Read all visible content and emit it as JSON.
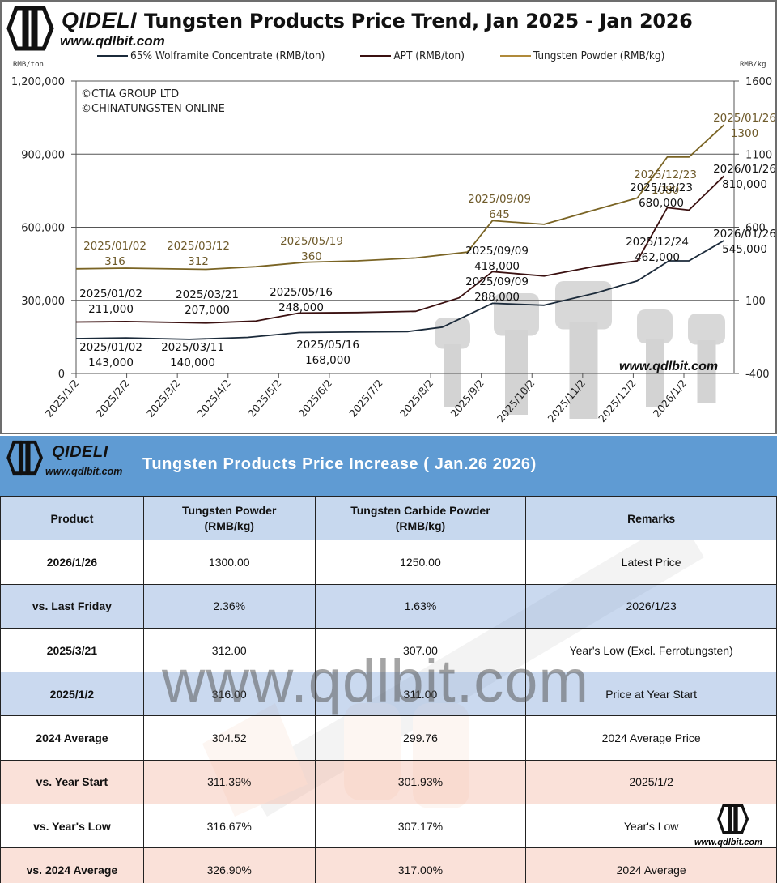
{
  "chart_header": {
    "brand": "QIDELI",
    "url": "www.qdlbit.com",
    "title": "Tungsten Products Price Trend, Jan 2025 - Jan 2026",
    "left_axis_unit": "RMB/ton",
    "right_axis_unit": "RMB/kg",
    "copyright_1": "©CTIA GROUP LTD",
    "copyright_2": "©CHINATUNGSTEN ONLINE",
    "watermark": "www.qdlbit.com"
  },
  "legend": [
    {
      "label": "65% Wolframite Concentrate (RMB/ton)",
      "color": "#1b2a3a"
    },
    {
      "label": "APT (RMB/ton)",
      "color": "#3a1010"
    },
    {
      "label": "Tungsten Powder (RMB/kg)",
      "color": "#7a6424"
    }
  ],
  "chart_data": {
    "type": "line",
    "title": "Tungsten Products Price Trend, Jan 2025 - Jan 2026",
    "xlabel": "",
    "ylabel": "RMB/ton",
    "y2label": "RMB/kg",
    "ylim": [
      0,
      1200000
    ],
    "y2lim": [
      -400,
      1600
    ],
    "yticks": [
      "0",
      "300,000",
      "600,000",
      "900,000",
      "1,200,000"
    ],
    "y2ticks": [
      "-400",
      "100",
      "600",
      "1100",
      "1600"
    ],
    "grid": true,
    "legend_position": "top",
    "x_ticks": [
      "2025/1/2",
      "2025/2/2",
      "2025/3/2",
      "2025/4/2",
      "2025/5/2",
      "2025/6/2",
      "2025/7/2",
      "2025/8/2",
      "2025/9/2",
      "2025/10/2",
      "2025/11/2",
      "2025/12/2",
      "2026/1/2"
    ],
    "series": [
      {
        "name": "65% Wolframite Concentrate (RMB/ton)",
        "axis": "left",
        "color": "#1b2a3a",
        "x": [
          "2025/01/02",
          "2025/02/01",
          "2025/03/11",
          "2025/04/15",
          "2025/05/16",
          "2025/06/15",
          "2025/07/20",
          "2025/08/10",
          "2025/09/09",
          "2025/10/10",
          "2025/11/10",
          "2025/12/05",
          "2025/12/24",
          "2026/01/05",
          "2026/01/26"
        ],
        "values": [
          143000,
          146000,
          140000,
          148000,
          168000,
          170000,
          172000,
          190000,
          288000,
          280000,
          330000,
          380000,
          462000,
          462000,
          545000
        ]
      },
      {
        "name": "APT (RMB/ton)",
        "axis": "left",
        "color": "#3a1010",
        "x": [
          "2025/01/02",
          "2025/02/01",
          "2025/03/21",
          "2025/04/20",
          "2025/05/16",
          "2025/06/20",
          "2025/07/25",
          "2025/08/20",
          "2025/09/09",
          "2025/10/10",
          "2025/11/10",
          "2025/12/05",
          "2025/12/23",
          "2026/01/05",
          "2026/01/26"
        ],
        "values": [
          211000,
          213000,
          207000,
          215000,
          248000,
          250000,
          255000,
          310000,
          418000,
          400000,
          440000,
          462000,
          680000,
          670000,
          810000
        ]
      },
      {
        "name": "Tungsten Powder (RMB/kg)",
        "axis": "right",
        "color": "#7a6424",
        "x": [
          "2025/01/02",
          "2025/02/01",
          "2025/03/21",
          "2025/04/20",
          "2025/05/19",
          "2025/06/20",
          "2025/07/25",
          "2025/08/25",
          "2025/09/09",
          "2025/10/10",
          "2025/11/10",
          "2025/12/05",
          "2025/12/23",
          "2026/01/05",
          "2026/01/26"
        ],
        "values": [
          316,
          320,
          312,
          330,
          360,
          370,
          390,
          430,
          645,
          620,
          720,
          800,
          1080,
          1080,
          1300
        ]
      }
    ],
    "annotations": [
      {
        "series": "Tungsten Powder",
        "date": "2025/01/02",
        "value": "316"
      },
      {
        "series": "Tungsten Powder",
        "date": "2025/03/12",
        "value": "312"
      },
      {
        "series": "Tungsten Powder",
        "date": "2025/05/19",
        "value": "360"
      },
      {
        "series": "Tungsten Powder",
        "date": "2025/09/09",
        "value": "645"
      },
      {
        "series": "Tungsten Powder",
        "date": "2025/12/23",
        "value": "1080"
      },
      {
        "series": "Tungsten Powder",
        "date": "2025/01/26",
        "value": "1300"
      },
      {
        "series": "APT",
        "date": "2025/01/02",
        "value": "211,000"
      },
      {
        "series": "APT",
        "date": "2025/03/21",
        "value": "207,000"
      },
      {
        "series": "APT",
        "date": "2025/05/16",
        "value": "248,000"
      },
      {
        "series": "APT",
        "date": "2025/09/09",
        "value": "418,000"
      },
      {
        "series": "APT",
        "date": "2025/12/23",
        "value": "680,000"
      },
      {
        "series": "APT",
        "date": "2026/01/26",
        "value": "810,000"
      },
      {
        "series": "Wolframite",
        "date": "2025/01/02",
        "value": "143,000"
      },
      {
        "series": "Wolframite",
        "date": "2025/03/11",
        "value": "140,000"
      },
      {
        "series": "Wolframite",
        "date": "2025/05/16",
        "value": "168,000"
      },
      {
        "series": "Wolframite",
        "date": "2025/09/09",
        "value": "288,000"
      },
      {
        "series": "Wolframite",
        "date": "2025/12/24",
        "value": "462,000"
      },
      {
        "series": "Wolframite",
        "date": "2026/01/26",
        "value": "545,000"
      }
    ]
  },
  "table": {
    "brand": "QIDELI",
    "url": "www.qdlbit.com",
    "title": "Tungsten Products Price Increase ( Jan.26 2026)",
    "watermark": "www.qdlbit.com",
    "headers": {
      "product": "Product",
      "tungsten_powder_1": "Tungsten Powder",
      "tungsten_powder_2": "(RMB/kg)",
      "carbide_powder_1": "Tungsten Carbide Powder",
      "carbide_powder_2": "(RMB/kg)",
      "remarks": "Remarks"
    },
    "rows": [
      {
        "product": "2026/1/26",
        "tungsten_powder": "1300.00",
        "carbide_powder": "1250.00",
        "remarks": "Latest Price",
        "tint": "white"
      },
      {
        "product": "vs. Last Friday",
        "tungsten_powder": "2.36%",
        "carbide_powder": "1.63%",
        "remarks": "2026/1/23",
        "tint": "blue"
      },
      {
        "product": "2025/3/21",
        "tungsten_powder": "312.00",
        "carbide_powder": "307.00",
        "remarks": "Year's Low (Excl. Ferrotungsten)",
        "tint": "white"
      },
      {
        "product": "2025/1/2",
        "tungsten_powder": "316.00",
        "carbide_powder": "311.00",
        "remarks": "Price at Year Start",
        "tint": "blue"
      },
      {
        "product": "2024 Average",
        "tungsten_powder": "304.52",
        "carbide_powder": "299.76",
        "remarks": "2024 Average Price",
        "tint": "white"
      },
      {
        "product": "vs. Year Start",
        "tungsten_powder": "311.39%",
        "carbide_powder": "301.93%",
        "remarks": "2025/1/2",
        "tint": "pink"
      },
      {
        "product": "vs. Year's Low",
        "tungsten_powder": "316.67%",
        "carbide_powder": "307.17%",
        "remarks": "Year's Low",
        "tint": "white"
      },
      {
        "product": "vs. 2024 Average",
        "tungsten_powder": "326.90%",
        "carbide_powder": "317.00%",
        "remarks": "2024 Average",
        "tint": "pink"
      }
    ],
    "corner_url": "www.qdlbit.com"
  },
  "colors": {
    "header_blue": "#5f9bd3",
    "row_blue": "#c5d6ee",
    "row_pink": "#fadcd4",
    "wolframite": "#1b2a3a",
    "apt": "#3a1010",
    "powder": "#7a6424"
  }
}
